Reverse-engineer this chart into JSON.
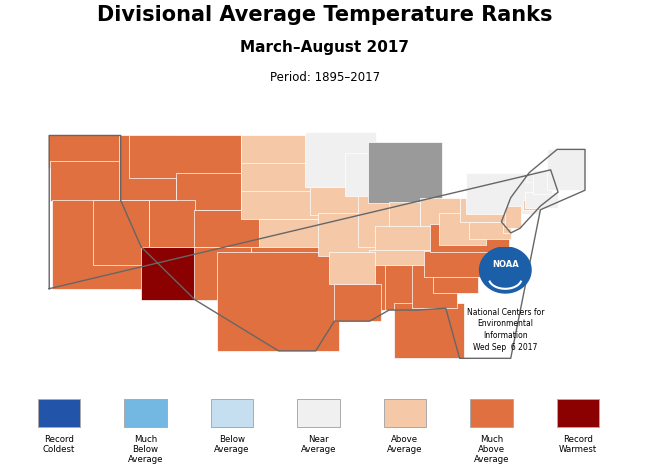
{
  "title": "Divisional Average Temperature Ranks",
  "subtitle": "March–August 2017",
  "period": "Period: 1895–2017",
  "noaa_text": "National Centers for\nEnvironmental\nInformation\nWed Sep  6 2017",
  "bg_color": "#9a9a9a",
  "legend_categories": [
    {
      "label": "Record\nColdest",
      "color": "#2255aa"
    },
    {
      "label": "Much\nBelow\nAverage",
      "color": "#72b8e2"
    },
    {
      "label": "Below\nAverage",
      "color": "#c5dff0"
    },
    {
      "label": "Near\nAverage",
      "color": "#f0f0f0"
    },
    {
      "label": "Above\nAverage",
      "color": "#f5c8a8"
    },
    {
      "label": "Much\nAbove\nAverage",
      "color": "#e07040"
    },
    {
      "label": "Record\nWarmest",
      "color": "#8b0000"
    }
  ],
  "state_colors": {
    "Washington": "#e07040",
    "Oregon": "#e07040",
    "California": "#e07040",
    "Nevada": "#e07040",
    "Idaho": "#e07040",
    "Montana": "#e07040",
    "Wyoming": "#e07040",
    "Utah": "#e07040",
    "Colorado": "#e07040",
    "Arizona": "#8b0000",
    "New Mexico": "#e07040",
    "North Dakota": "#f5c8a8",
    "South Dakota": "#f5c8a8",
    "Nebraska": "#f5c8a8",
    "Kansas": "#f5c8a8",
    "Oklahoma": "#e07040",
    "Texas": "#e07040",
    "Minnesota": "#f0f0f0",
    "Iowa": "#f5c8a8",
    "Missouri": "#f5c8a8",
    "Wisconsin": "#f0f0f0",
    "Illinois": "#f5c8a8",
    "Michigan": "#9a9a9a",
    "Indiana": "#f5c8a8",
    "Ohio": "#f5c8a8",
    "Kentucky": "#f5c8a8",
    "Tennessee": "#f5c8a8",
    "Mississippi": "#e07040",
    "Alabama": "#e07040",
    "Arkansas": "#f5c8a8",
    "Louisiana": "#e07040",
    "Florida": "#e07040",
    "Georgia": "#e07040",
    "South Carolina": "#e07040",
    "North Carolina": "#e07040",
    "Virginia": "#e07040",
    "West Virginia": "#f5c8a8",
    "Maryland": "#f5c8a8",
    "Delaware": "#f5c8a8",
    "Pennsylvania": "#f5c8a8",
    "New York": "#f0f0f0",
    "New Jersey": "#f5c8a8",
    "Connecticut": "#f5c8a8",
    "Rhode Island": "#f5c8a8",
    "Massachusetts": "#f0f0f0",
    "Vermont": "#f0f0f0",
    "New Hampshire": "#f0f0f0",
    "Maine": "#f0f0f0"
  }
}
